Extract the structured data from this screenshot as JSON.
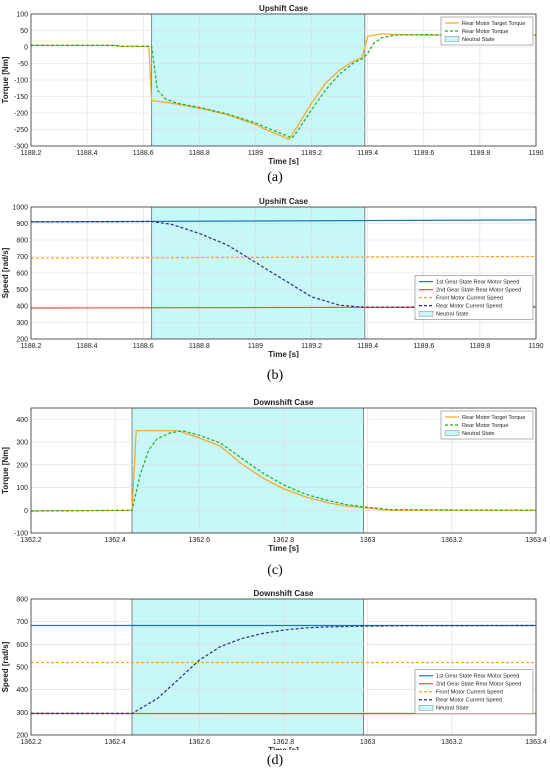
{
  "captions": [
    "(a)",
    "(b)",
    "(c)",
    "(d)"
  ],
  "chart_data": [
    {
      "type": "line",
      "title": "Upshift Case",
      "xlabel": "Time [s]",
      "ylabel": "Torque [Nm]",
      "xlim": [
        1188.2,
        1190
      ],
      "ylim": [
        -300,
        100
      ],
      "xticks": [
        1188.2,
        1188.4,
        1188.6,
        1188.8,
        1189,
        1189.2,
        1189.4,
        1189.6,
        1189.8,
        1190
      ],
      "xtick_labels": [
        "1188.2",
        "1188.4",
        "1188.6",
        "1188.8",
        "1189",
        "1189.2",
        "1189.4",
        "1189.6",
        "1189.8",
        "1190"
      ],
      "yticks": [
        -300,
        -250,
        -200,
        -150,
        -100,
        -50,
        0,
        50,
        100
      ],
      "ytick_labels": [
        "-300",
        "-250",
        "-200",
        "-150",
        "-100",
        "-50",
        "0",
        "50",
        "100"
      ],
      "grid": true,
      "legend_position": "top-right",
      "neutral_region": {
        "x": [
          1188.63,
          1189.39
        ],
        "label": "Neutral State",
        "color": "#c8f7f7"
      },
      "series": [
        {
          "name": "Rear Motor Target Torque",
          "color": "#f5a623",
          "dash": "solid",
          "x": [
            1188.2,
            1188.5,
            1188.52,
            1188.62,
            1188.63,
            1188.7,
            1188.8,
            1188.9,
            1189.0,
            1189.05,
            1189.1,
            1189.12,
            1189.15,
            1189.2,
            1189.25,
            1189.3,
            1189.35,
            1189.38,
            1189.4,
            1189.45,
            1189.5,
            1189.6,
            1189.7,
            1189.8,
            1189.9,
            1190.0
          ],
          "y": [
            5,
            5,
            2,
            2,
            -162,
            -170,
            -185,
            -205,
            -235,
            -255,
            -272,
            -280,
            -240,
            -170,
            -110,
            -70,
            -42,
            -32,
            32,
            40,
            38,
            36,
            36,
            36,
            36,
            36
          ]
        },
        {
          "name": "Rear Motor Torque",
          "color": "#22aa22",
          "dash": "dashed",
          "x": [
            1188.2,
            1188.5,
            1188.52,
            1188.63,
            1188.64,
            1188.65,
            1188.68,
            1188.72,
            1188.8,
            1188.9,
            1189.0,
            1189.05,
            1189.1,
            1189.13,
            1189.15,
            1189.2,
            1189.25,
            1189.3,
            1189.35,
            1189.38,
            1189.4,
            1189.42,
            1189.45,
            1189.5,
            1189.6,
            1189.7,
            1189.8,
            1189.9,
            1190.0
          ],
          "y": [
            5,
            5,
            2,
            2,
            -60,
            -130,
            -158,
            -170,
            -183,
            -203,
            -230,
            -248,
            -265,
            -276,
            -255,
            -190,
            -130,
            -82,
            -48,
            -36,
            -20,
            10,
            28,
            36,
            38,
            36,
            36,
            36,
            36
          ]
        }
      ],
      "legend": [
        "Rear Motor Target Torque",
        "Rear Motor Torque",
        "Neutral State"
      ]
    },
    {
      "type": "line",
      "title": "Upshift Case",
      "xlabel": "Time [s]",
      "ylabel": "Speed [rad/s]",
      "xlim": [
        1188.2,
        1190
      ],
      "ylim": [
        200,
        1000
      ],
      "xticks": [
        1188.2,
        1188.4,
        1188.6,
        1188.8,
        1189,
        1189.2,
        1189.4,
        1189.6,
        1189.8,
        1190
      ],
      "xtick_labels": [
        "1188.2",
        "1188.4",
        "1188.6",
        "1188.8",
        "1189",
        "1189.2",
        "1189.4",
        "1189.6",
        "1189.8",
        "1190"
      ],
      "yticks": [
        200,
        300,
        400,
        500,
        600,
        700,
        800,
        900,
        1000
      ],
      "ytick_labels": [
        "200",
        "300",
        "400",
        "500",
        "600",
        "700",
        "800",
        "900",
        "1000"
      ],
      "grid": true,
      "legend_position": "middle-right",
      "neutral_region": {
        "x": [
          1188.63,
          1189.39
        ],
        "label": "Neutral State",
        "color": "#c8f7f7"
      },
      "series": [
        {
          "name": "1st Gear State Rear Motor Speed",
          "color": "#1f77b4",
          "dash": "solid",
          "x": [
            1188.2,
            1190.0
          ],
          "y": [
            910,
            922
          ]
        },
        {
          "name": "2nd Gear State Rear Motor Speed",
          "color": "#e8543a",
          "dash": "solid",
          "x": [
            1188.2,
            1190.0
          ],
          "y": [
            388,
            394
          ]
        },
        {
          "name": "Front Motor Current Speed",
          "color": "#f5a623",
          "dash": "dashed",
          "x": [
            1188.2,
            1190.0
          ],
          "y": [
            690,
            700
          ]
        },
        {
          "name": "Rear Motor Current Speed",
          "color": "#2d2d7a",
          "dash": "dashed",
          "x": [
            1188.2,
            1188.63,
            1188.7,
            1188.8,
            1188.9,
            1189.0,
            1189.1,
            1189.2,
            1189.3,
            1189.39,
            1189.5,
            1190.0
          ],
          "y": [
            910,
            912,
            895,
            840,
            770,
            665,
            560,
            455,
            405,
            392,
            392,
            394
          ]
        }
      ],
      "legend": [
        "1st Gear State Rear Motor Speed",
        "2nd Gear State Rear Motor Speed",
        "Front Motor Current Speed",
        "Rear Motor Current Speed",
        "Neutral State"
      ]
    },
    {
      "type": "line",
      "title": "Downshift Case",
      "xlabel": "Time [s]",
      "ylabel": "Torque [Nm]",
      "xlim": [
        1362.2,
        1363.4
      ],
      "ylim": [
        -100,
        450
      ],
      "xticks": [
        1362.2,
        1362.4,
        1362.6,
        1362.8,
        1363,
        1363.2,
        1363.4
      ],
      "xtick_labels": [
        "1362.2",
        "1362.4",
        "1362.6",
        "1362.8",
        "1363",
        "1363.2",
        "1363.4"
      ],
      "yticks": [
        -100,
        0,
        100,
        200,
        300,
        400
      ],
      "ytick_labels": [
        "-100",
        "0",
        "100",
        "200",
        "300",
        "400"
      ],
      "grid": true,
      "legend_position": "top-right",
      "neutral_region": {
        "x": [
          1362.44,
          1362.99
        ],
        "label": "Neutral State",
        "color": "#c8f7f7"
      },
      "series": [
        {
          "name": "Rear Motor Target Torque",
          "color": "#f5a623",
          "dash": "solid",
          "x": [
            1362.2,
            1362.43,
            1362.44,
            1362.45,
            1362.5,
            1362.55,
            1362.6,
            1362.65,
            1362.7,
            1362.75,
            1362.8,
            1362.85,
            1362.9,
            1362.95,
            1362.99,
            1363.05,
            1363.4
          ],
          "y": [
            -3,
            0,
            0,
            350,
            350,
            350,
            318,
            282,
            205,
            143,
            95,
            60,
            35,
            18,
            12,
            0,
            0
          ]
        },
        {
          "name": "Rear Motor Torque",
          "color": "#22aa22",
          "dash": "dashed",
          "x": [
            1362.2,
            1362.44,
            1362.46,
            1362.48,
            1362.5,
            1362.53,
            1362.56,
            1362.6,
            1362.65,
            1362.7,
            1362.75,
            1362.8,
            1362.85,
            1362.9,
            1362.95,
            1362.99,
            1363.02,
            1363.05,
            1363.4
          ],
          "y": [
            -3,
            0,
            160,
            265,
            315,
            340,
            350,
            330,
            296,
            230,
            165,
            112,
            72,
            45,
            25,
            15,
            10,
            3,
            0
          ]
        }
      ],
      "legend": [
        "Rear Motor Target Torque",
        "Rear Motor Torque",
        "Neutral State"
      ]
    },
    {
      "type": "line",
      "title": "Downshift Case",
      "xlabel": "Time [s]",
      "ylabel": "Speed [rad/s]",
      "xlim": [
        1362.2,
        1363.4
      ],
      "ylim": [
        200,
        800
      ],
      "xticks": [
        1362.2,
        1362.4,
        1362.6,
        1362.8,
        1363,
        1363.2,
        1363.4
      ],
      "xtick_labels": [
        "1362.2",
        "1362.4",
        "1362.6",
        "1362.8",
        "1363",
        "1363.2",
        "1363.4"
      ],
      "yticks": [
        200,
        300,
        400,
        500,
        600,
        700,
        800
      ],
      "ytick_labels": [
        "200",
        "300",
        "400",
        "500",
        "600",
        "700",
        "800"
      ],
      "grid": true,
      "legend_position": "middle-right",
      "neutral_region": {
        "x": [
          1362.44,
          1362.99
        ],
        "label": "Neutral State",
        "color": "#c8f7f7"
      },
      "series": [
        {
          "name": "1st Gear State Rear Motor Speed",
          "color": "#1f77b4",
          "dash": "solid",
          "x": [
            1362.2,
            1363.4
          ],
          "y": [
            683,
            683
          ]
        },
        {
          "name": "2nd Gear State Rear Motor Speed",
          "color": "#e8543a",
          "dash": "solid",
          "x": [
            1362.2,
            1363.4
          ],
          "y": [
            295,
            294
          ]
        },
        {
          "name": "Front Motor Current Speed",
          "color": "#f5a623",
          "dash": "dashed",
          "x": [
            1362.2,
            1363.4
          ],
          "y": [
            520,
            520
          ]
        },
        {
          "name": "Rear Motor Current Speed",
          "color": "#2d2d7a",
          "dash": "dashed",
          "x": [
            1362.2,
            1362.44,
            1362.5,
            1362.55,
            1362.6,
            1362.65,
            1362.7,
            1362.75,
            1362.8,
            1362.85,
            1362.9,
            1362.99,
            1363.1,
            1363.4
          ],
          "y": [
            295,
            295,
            360,
            445,
            530,
            590,
            625,
            648,
            663,
            672,
            677,
            680,
            682,
            683
          ]
        }
      ],
      "legend": [
        "1st Gear State Rear Motor Speed",
        "2nd Gear State Rear Motor Speed",
        "Front Motor Current Speed",
        "Rear Motor Current Speed",
        "Neutral State"
      ]
    }
  ]
}
